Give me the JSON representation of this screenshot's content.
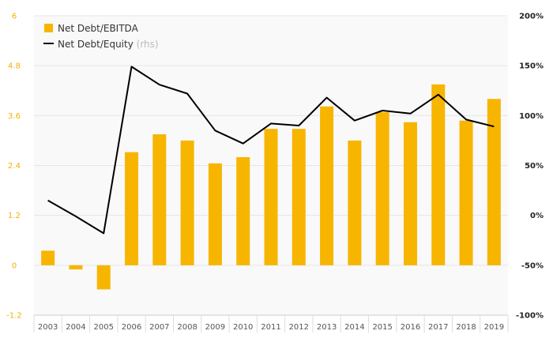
{
  "chart_data": {
    "type": "bar+line",
    "categories": [
      "2003",
      "2004",
      "2005",
      "2006",
      "2007",
      "2008",
      "2009",
      "2010",
      "2011",
      "2012",
      "2013",
      "2014",
      "2015",
      "2016",
      "2017",
      "2018",
      "2019"
    ],
    "series": [
      {
        "name": "Net Debt/EBITDA",
        "type": "bar",
        "axis": "left",
        "color": "#F7B500",
        "values": [
          0.35,
          -0.1,
          -0.58,
          2.72,
          3.15,
          3.0,
          2.45,
          2.6,
          3.28,
          3.28,
          3.82,
          3.0,
          3.68,
          3.44,
          4.35,
          3.48,
          4.0
        ]
      },
      {
        "name": "Net Debt/Equity",
        "name_suffix": "(rhs)",
        "type": "line",
        "axis": "right",
        "color": "#000000",
        "values": [
          15,
          -1,
          -18,
          149,
          131,
          122,
          85,
          72,
          92,
          90,
          118,
          95,
          105,
          102,
          121,
          96,
          89
        ]
      }
    ],
    "y_left": {
      "min": -1.2,
      "max": 6,
      "ticks": [
        -1.2,
        0,
        1.2,
        2.4,
        3.6,
        4.8,
        6
      ],
      "tick_labels": [
        "-1.2",
        "0",
        "1.2",
        "2.4",
        "3.6",
        "4.8",
        "6"
      ]
    },
    "y_right": {
      "min": -100,
      "max": 200,
      "ticks": [
        -100,
        -50,
        0,
        50,
        100,
        150,
        200
      ],
      "tick_labels": [
        "-100%",
        "-50%",
        "0%",
        "50%",
        "100%",
        "150%",
        "200%"
      ]
    },
    "grid": true,
    "legend_position": "top-left"
  }
}
